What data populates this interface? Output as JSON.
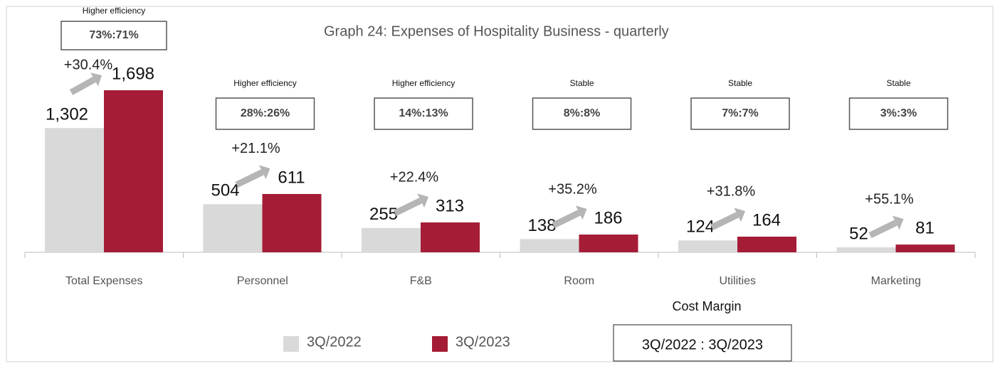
{
  "chart_data": {
    "type": "bar",
    "title": "Graph 24: Expenses of Hospitality Business - quarterly",
    "categories": [
      "Total Expenses",
      "Personnel",
      "F&B",
      "Room",
      "Utilities",
      "Marketing"
    ],
    "series": [
      {
        "name": "3Q/2022",
        "color": "#d9d9d9",
        "values": [
          1302,
          504,
          255,
          138,
          124,
          52
        ],
        "value_labels": [
          "1,302",
          "504",
          "255",
          "138",
          "124",
          "52"
        ]
      },
      {
        "name": "3Q/2023",
        "color": "#a51c36",
        "values": [
          1698,
          611,
          313,
          186,
          164,
          81
        ],
        "value_labels": [
          "1,698",
          "611",
          "313",
          "186",
          "164",
          "81"
        ]
      }
    ],
    "annotations": [
      {
        "efficiency": "Higher efficiency",
        "ratio": "73%:71%",
        "growth": "+30.4%"
      },
      {
        "efficiency": "Higher efficiency",
        "ratio": "28%:26%",
        "growth": "+21.1%"
      },
      {
        "efficiency": "Higher efficiency",
        "ratio": "14%:13%",
        "growth": "+22.4%"
      },
      {
        "efficiency": "Stable",
        "ratio": "8%:8%",
        "growth": "+35.2%"
      },
      {
        "efficiency": "Stable",
        "ratio": "7%:7%",
        "growth": "+31.8%"
      },
      {
        "efficiency": "Stable",
        "ratio": "3%:3%",
        "growth": "+55.1%"
      }
    ],
    "cost_margin": {
      "title": "Cost Margin",
      "text": "3Q/2022 : 3Q/2023"
    },
    "legend": "bottom"
  }
}
